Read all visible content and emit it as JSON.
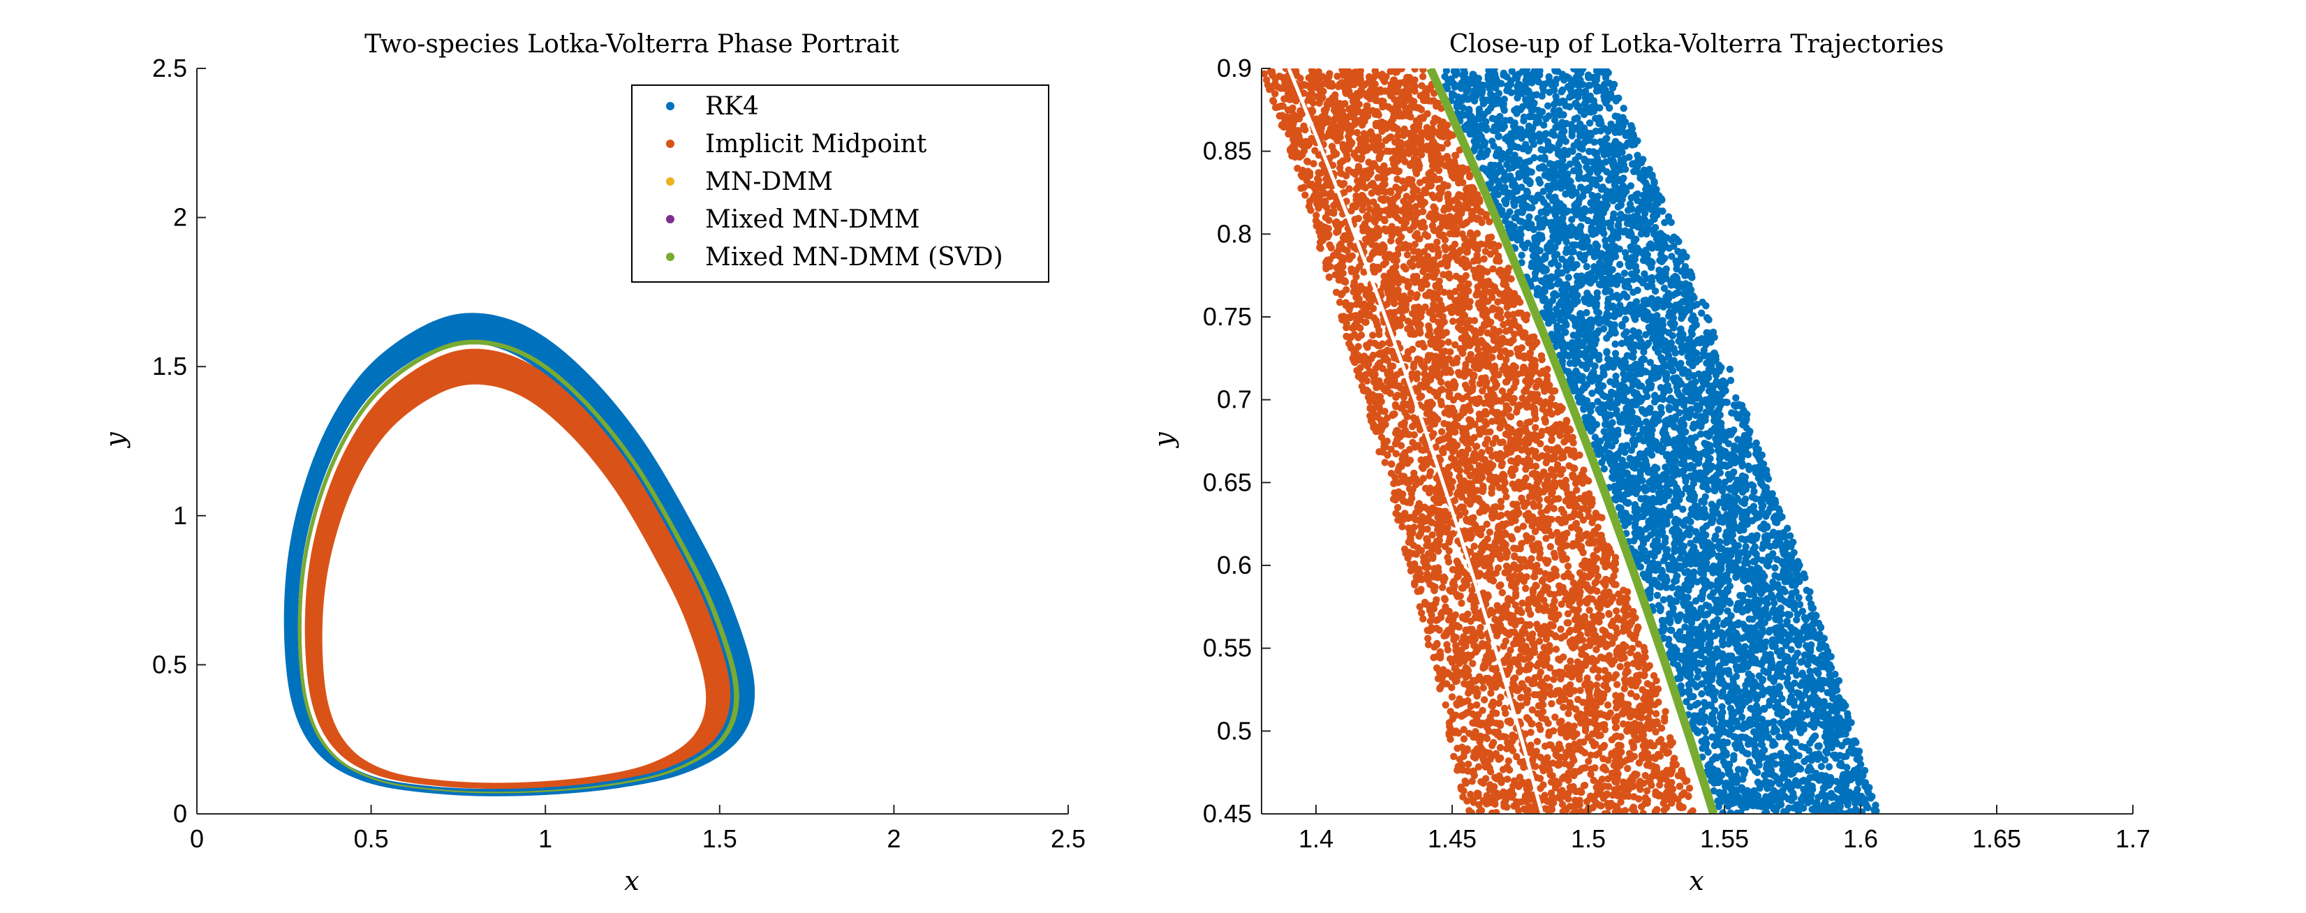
{
  "colors": {
    "rk4": "#0072BD",
    "implicit_midpoint": "#D95319",
    "mn_dmm": "#EDB120",
    "mixed_mn_dmm": "#7E2F8E",
    "mixed_mn_dmm_svd": "#77AC30"
  },
  "chart_data": [
    {
      "type": "scatter",
      "title": "Two-species Lotka-Volterra Phase Portrait",
      "xlabel": "x",
      "ylabel": "y",
      "xlim": [
        0,
        2.5
      ],
      "ylim": [
        0,
        2.5
      ],
      "xticks": [
        0,
        0.5,
        1,
        1.5,
        2,
        2.5
      ],
      "xtick_labels": [
        "0",
        "0.5",
        "1",
        "1.5",
        "2",
        "2.5"
      ],
      "yticks": [
        0,
        0.5,
        1,
        1.5,
        2,
        2.5
      ],
      "ytick_labels": [
        "0",
        "0.5",
        "1",
        "1.5",
        "2",
        "2.5"
      ],
      "legend_position": "top-right",
      "series": [
        {
          "name": "RK4",
          "color": "#0072BD",
          "band": {
            "inner": {
              "xmin": 0.29,
              "xmax": 1.5,
              "ymin": 0.085,
              "ymax": 1.58
            },
            "outer": {
              "xmin": 0.25,
              "xmax": 1.6,
              "ymin": 0.06,
              "ymax": 1.68
            }
          }
        },
        {
          "name": "Implicit Midpoint",
          "color": "#D95319",
          "band": {
            "inner": {
              "xmin": 0.36,
              "xmax": 1.46,
              "ymin": 0.105,
              "ymax": 1.44
            },
            "outer": {
              "xmin": 0.31,
              "xmax": 1.53,
              "ymin": 0.085,
              "ymax": 1.56
            }
          }
        },
        {
          "name": "MN-DMM",
          "color": "#EDB120",
          "band": {
            "inner": {
              "xmin": 0.3,
              "xmax": 1.54,
              "ymin": 0.075,
              "ymax": 1.575
            },
            "outer": {
              "xmin": 0.29,
              "xmax": 1.555,
              "ymin": 0.07,
              "ymax": 1.59
            }
          }
        },
        {
          "name": "Mixed MN-DMM",
          "color": "#7E2F8E",
          "band": {
            "inner": {
              "xmin": 0.3,
              "xmax": 1.54,
              "ymin": 0.075,
              "ymax": 1.575
            },
            "outer": {
              "xmin": 0.29,
              "xmax": 1.555,
              "ymin": 0.07,
              "ymax": 1.59
            }
          }
        },
        {
          "name": "Mixed MN-DMM (SVD)",
          "color": "#77AC30",
          "band": {
            "inner": {
              "xmin": 0.3,
              "xmax": 1.54,
              "ymin": 0.075,
              "ymax": 1.575
            },
            "outer": {
              "xmin": 0.29,
              "xmax": 1.555,
              "ymin": 0.07,
              "ymax": 1.59
            }
          }
        }
      ]
    },
    {
      "type": "scatter",
      "title": "Close-up of Lotka-Volterra Trajectories",
      "xlabel": "x",
      "ylabel": "y",
      "xlim": [
        1.38,
        1.7
      ],
      "ylim": [
        0.45,
        0.9
      ],
      "xticks": [
        1.4,
        1.45,
        1.5,
        1.55,
        1.6,
        1.65,
        1.7
      ],
      "xtick_labels": [
        "1.4",
        "1.45",
        "1.5",
        "1.55",
        "1.6",
        "1.65",
        "1.7"
      ],
      "yticks": [
        0.45,
        0.5,
        0.55,
        0.6,
        0.65,
        0.7,
        0.75,
        0.8,
        0.85,
        0.9
      ],
      "ytick_labels": [
        "0.45",
        "0.5",
        "0.55",
        "0.6",
        "0.65",
        "0.7",
        "0.75",
        "0.8",
        "0.85",
        "0.9"
      ],
      "series": [
        {
          "name": "Implicit Midpoint",
          "color": "#D95319",
          "band_edges": {
            "y": [
              0.45,
              0.9
            ],
            "left_x": [
              1.455,
              1.38
            ],
            "right_x": [
              1.54,
              1.44
            ]
          },
          "inner_curve": {
            "y": [
              0.45,
              0.9
            ],
            "x": [
              1.483,
              1.39
            ]
          }
        },
        {
          "name": "Mixed MN-DMM (SVD)",
          "color": "#77AC30",
          "curve": {
            "y": [
              0.45,
              0.9
            ],
            "x": [
              1.546,
              1.442
            ]
          }
        },
        {
          "name": "RK4",
          "color": "#0072BD",
          "band_edges": {
            "y": [
              0.45,
              0.9
            ],
            "left_x": [
              1.548,
              1.444
            ],
            "right_x": [
              1.607,
              1.507
            ]
          }
        }
      ]
    }
  ]
}
